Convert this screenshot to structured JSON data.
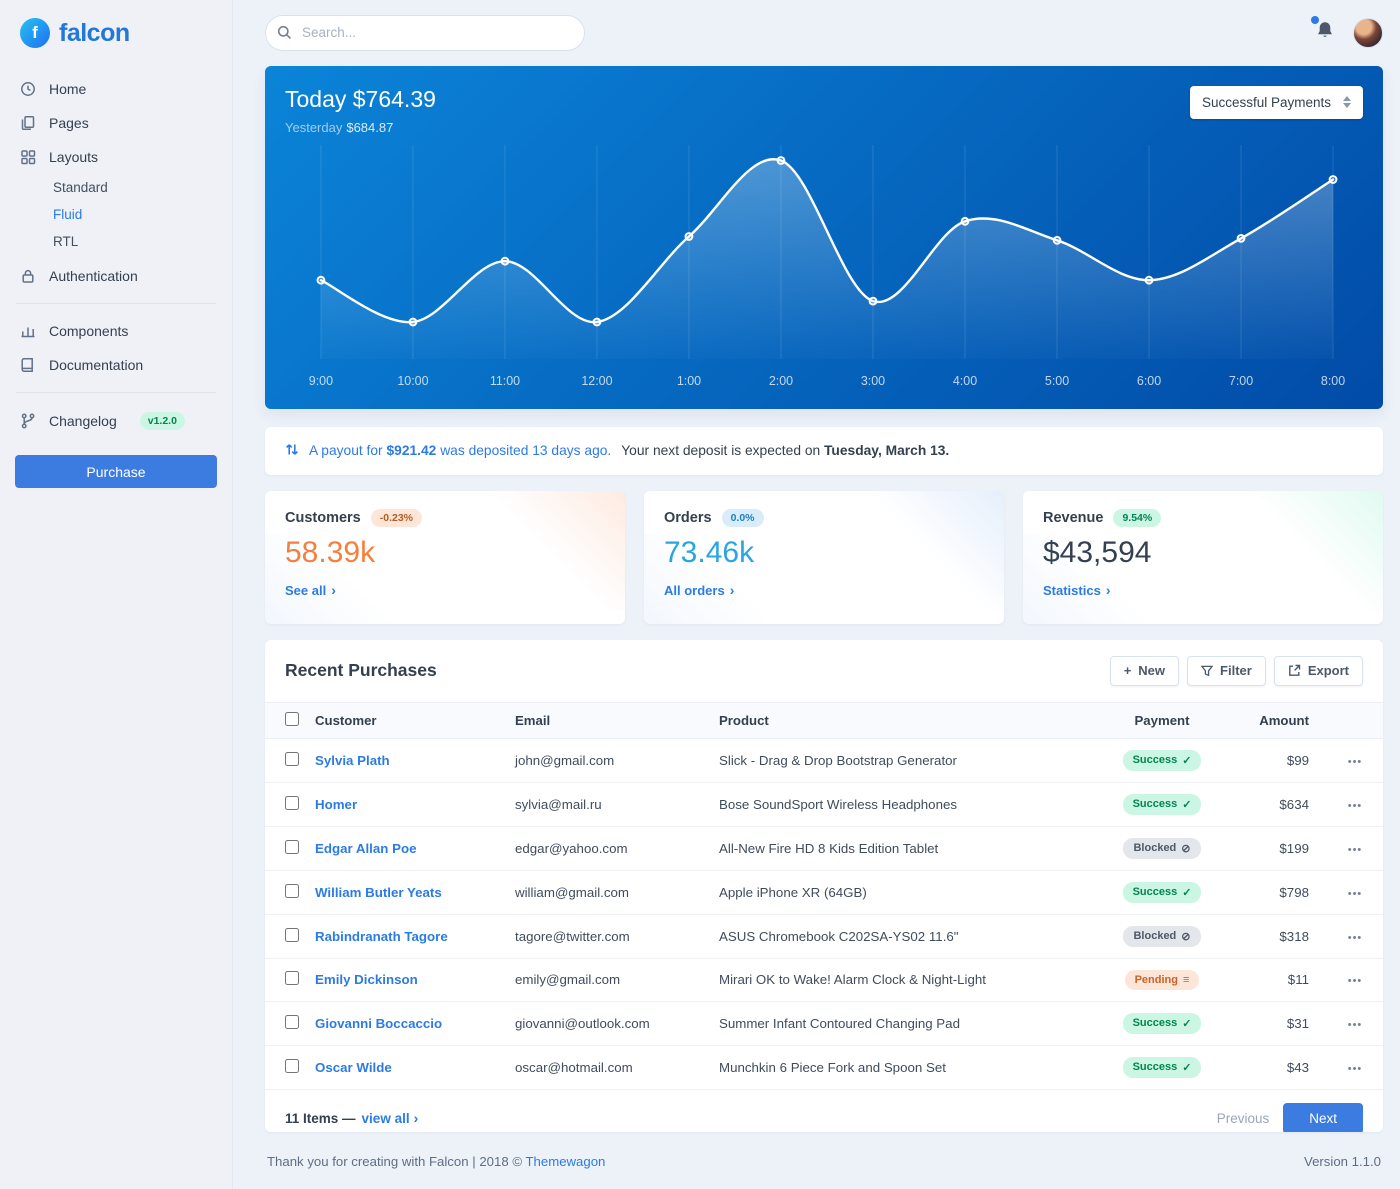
{
  "brand": {
    "initial": "f",
    "name": "falcon"
  },
  "sidebar": {
    "items": [
      {
        "label": "Home"
      },
      {
        "label": "Pages"
      },
      {
        "label": "Layouts",
        "children": [
          "Standard",
          "Fluid",
          "RTL"
        ],
        "active_child": "Fluid"
      },
      {
        "label": "Authentication"
      },
      {
        "label": "Components"
      },
      {
        "label": "Documentation"
      },
      {
        "label": "Changelog",
        "badge": "v1.2.0"
      }
    ],
    "purchase_label": "Purchase"
  },
  "topbar": {
    "search_placeholder": "Search..."
  },
  "chart_data": {
    "type": "line",
    "title": "Today $764.39",
    "subtitle_label": "Yesterday",
    "subtitle_value": "$684.87",
    "select_value": "Successful Payments",
    "categories": [
      "9:00",
      "10:00",
      "11:00",
      "12:00",
      "1:00",
      "2:00",
      "3:00",
      "4:00",
      "5:00",
      "6:00",
      "7:00",
      "8:00"
    ],
    "values": [
      32,
      10,
      42,
      10,
      55,
      95,
      21,
      63,
      53,
      32,
      54,
      85
    ],
    "ylim": [
      0,
      100
    ],
    "legend_position": "none",
    "grid": "vertical"
  },
  "payout": {
    "prefix": "A payout for",
    "amount": "$921.42",
    "suffix": "was deposited 13 days ago.",
    "rest": "Your next deposit is expected on",
    "date": "Tuesday, March 13."
  },
  "stats": [
    {
      "title": "Customers",
      "badge": "-0.23%",
      "value": "58.39k",
      "link": "See all"
    },
    {
      "title": "Orders",
      "badge": "0.0%",
      "value": "73.46k",
      "link": "All orders"
    },
    {
      "title": "Revenue",
      "badge": "9.54%",
      "value": "$43,594",
      "link": "Statistics"
    }
  ],
  "purchases": {
    "title": "Recent Purchases",
    "actions": {
      "new": "New",
      "filter": "Filter",
      "export": "Export"
    },
    "columns": [
      "Customer",
      "Email",
      "Product",
      "Payment",
      "Amount"
    ],
    "rows": [
      {
        "customer": "Sylvia Plath",
        "email": "john@gmail.com",
        "product": "Slick - Drag & Drop Bootstrap Generator",
        "payment": "Success",
        "amount": "$99"
      },
      {
        "customer": "Homer",
        "email": "sylvia@mail.ru",
        "product": "Bose SoundSport Wireless Headphones",
        "payment": "Success",
        "amount": "$634"
      },
      {
        "customer": "Edgar Allan Poe",
        "email": "edgar@yahoo.com",
        "product": "All-New Fire HD 8 Kids Edition Tablet",
        "payment": "Blocked",
        "amount": "$199"
      },
      {
        "customer": "William Butler Yeats",
        "email": "william@gmail.com",
        "product": "Apple iPhone XR (64GB)",
        "payment": "Success",
        "amount": "$798"
      },
      {
        "customer": "Rabindranath Tagore",
        "email": "tagore@twitter.com",
        "product": "ASUS Chromebook C202SA-YS02 11.6\"",
        "payment": "Blocked",
        "amount": "$318"
      },
      {
        "customer": "Emily Dickinson",
        "email": "emily@gmail.com",
        "product": "Mirari OK to Wake! Alarm Clock & Night-Light",
        "payment": "Pending",
        "amount": "$11"
      },
      {
        "customer": "Giovanni Boccaccio",
        "email": "giovanni@outlook.com",
        "product": "Summer Infant Contoured Changing Pad",
        "payment": "Success",
        "amount": "$31"
      },
      {
        "customer": "Oscar Wilde",
        "email": "oscar@hotmail.com",
        "product": "Munchkin 6 Piece Fork and Spoon Set",
        "payment": "Success",
        "amount": "$43"
      }
    ],
    "footer": {
      "items_text": "11 Items —",
      "view_all": "view all",
      "previous": "Previous",
      "next": "Next"
    }
  },
  "footer": {
    "text": "Thank you for creating with Falcon | 2018 ©",
    "link": "Themewagon",
    "version": "Version 1.1.0"
  },
  "icons": {
    "plus": "+",
    "chevron": "›",
    "check": "✓",
    "ban": "⊘",
    "lines": "≡",
    "dots": "•••"
  },
  "colors": {
    "primary": "#2c7be5",
    "customers_value": "#f5803e",
    "orders_value": "#2aa5de",
    "success": "#00864e",
    "warning": "#b35c22"
  }
}
